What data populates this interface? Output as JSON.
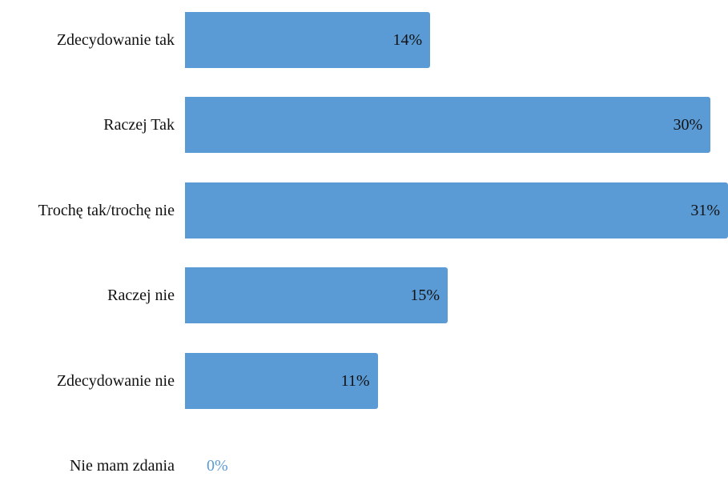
{
  "chart_data": {
    "type": "bar",
    "orientation": "horizontal",
    "categories": [
      "Zdecydowanie tak",
      "Raczej Tak",
      "Trochę tak/trochę nie",
      "Raczej nie",
      "Zdecydowanie nie",
      "Nie mam zdania"
    ],
    "values": [
      14,
      30,
      31,
      15,
      11,
      0
    ],
    "value_labels": [
      "14%",
      "30%",
      "31%",
      "15%",
      "11%",
      "0%"
    ],
    "color": "#5b9bd5",
    "xlim": [
      0,
      31
    ]
  }
}
